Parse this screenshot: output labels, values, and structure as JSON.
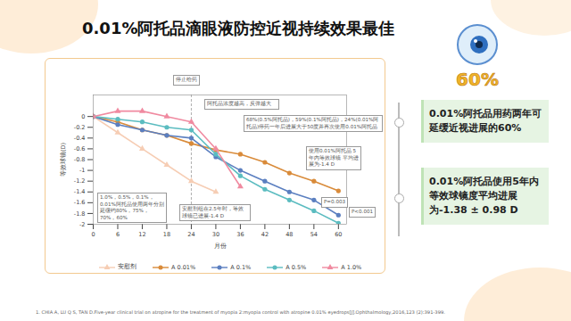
{
  "slide": {
    "title": "0.01%阿托品滴眼液防控近视持续效果最佳",
    "badge": "60%",
    "callouts": [
      "0.01%阿托品用药两年可延缓近视进展的60%",
      "0.01%阿托品使用5年内等效球镜度平均进展为-1.38 ± 0.98 D"
    ],
    "reference": "1. CHIA A, LU Q S, TAN D.Five-year clinical trial on atropine for the treatment of myopia 2:myopia control with atropine 0.01% eyedrops[J].Ophthalmology,2016,123 (2):391-399."
  },
  "chart_data": {
    "type": "line",
    "x_label": "月份",
    "y_label": "等效球镜(D)",
    "x": [
      0,
      6,
      12,
      18,
      24,
      30,
      36,
      42,
      48,
      54,
      60
    ],
    "xlim": [
      0,
      62
    ],
    "ylim": [
      -2,
      0.4
    ],
    "xticks": [
      0,
      6,
      12,
      18,
      24,
      30,
      36,
      42,
      48,
      54,
      60
    ],
    "yticks": [
      0,
      -0.2,
      -0.4,
      -0.6,
      -0.8,
      -1,
      -1.2,
      -1.4,
      -1.6,
      -1.8,
      -2
    ],
    "grid": false,
    "legend": "bottom",
    "series": [
      {
        "name": "安慰剂",
        "color": "#f6cdb4",
        "marker": "triangle",
        "line_style": "solid",
        "values": [
          0,
          -0.3,
          -0.6,
          -0.9,
          -1.2,
          -1.4,
          null,
          null,
          null,
          null,
          null
        ]
      },
      {
        "name": "A 0.01%",
        "color": "#d98b3a",
        "marker": "circle",
        "line_style": "solid",
        "values": [
          0,
          -0.1,
          -0.25,
          -0.35,
          -0.5,
          -0.62,
          -0.7,
          -0.85,
          -1.05,
          -1.2,
          -1.38
        ]
      },
      {
        "name": "A 0.1%",
        "color": "#5b7fc0",
        "marker": "circle",
        "line_style": "solid",
        "values": [
          0,
          -0.15,
          -0.25,
          -0.35,
          -0.4,
          -0.75,
          -1.0,
          -1.2,
          -1.4,
          -1.55,
          -1.83
        ]
      },
      {
        "name": "A 0.5%",
        "color": "#5bbcc0",
        "marker": "circle",
        "line_style": "solid",
        "values": [
          0,
          -0.05,
          -0.1,
          -0.2,
          -0.25,
          -0.7,
          -1.1,
          -1.35,
          -1.55,
          -1.75,
          -1.98
        ]
      },
      {
        "name": "A 1.0%",
        "color": "#f08aa0",
        "marker": "triangle",
        "line_style": "solid",
        "values": [
          0,
          0.1,
          0.1,
          0,
          -0.1,
          -0.6,
          -1.3,
          null,
          null,
          null,
          null
        ]
      }
    ],
    "annotations": [
      {
        "text": "停止给药",
        "x": 24
      },
      {
        "text": "阿托品浓度越高，反弹越大"
      },
      {
        "text": "68%(0.5%阿托品)，59%(0.1%阿托品)，24%(0.01%阿托品)停药一年后进展大于50度并再次使用0.01%阿托品"
      },
      {
        "text": "使用0.01%阿托品 5年内等效球镜 平均进展为-1.4 D"
      },
      {
        "text": "1.0%，0.5%，0.1%，0.01%阿托品使用两年分别延缓约80%，75%，70%，60%"
      },
      {
        "text": "安慰剂组在2.5年时，等效球镜已进展-1.4 D"
      },
      {
        "text": "P=0.003"
      },
      {
        "text": "P<0.001"
      }
    ]
  }
}
